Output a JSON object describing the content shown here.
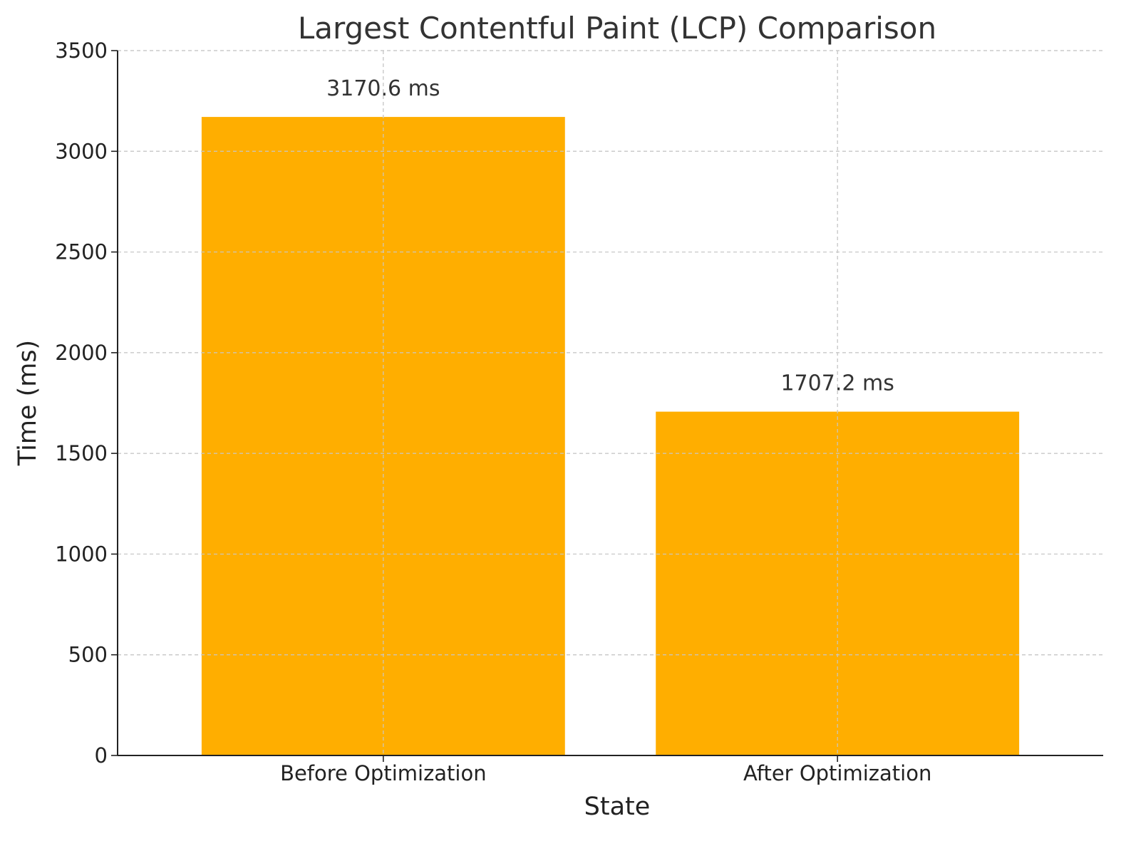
{
  "chart_data": {
    "type": "bar",
    "title": "Largest Contentful Paint (LCP) Comparison",
    "xlabel": "State",
    "ylabel": "Time (ms)",
    "categories": [
      "Before Optimization",
      "After Optimization"
    ],
    "values": [
      3170.6,
      1707.2
    ],
    "data_labels": [
      "3170.6 ms",
      "1707.2 ms"
    ],
    "ylim": [
      0,
      3500
    ],
    "yticks": [
      0,
      500,
      1000,
      1500,
      2000,
      2500,
      3000,
      3500
    ],
    "ytick_labels": [
      "0",
      "500",
      "1000",
      "1500",
      "2000",
      "2500",
      "3000",
      "3500"
    ],
    "grid": true,
    "bar_color": "#FFAE00"
  }
}
